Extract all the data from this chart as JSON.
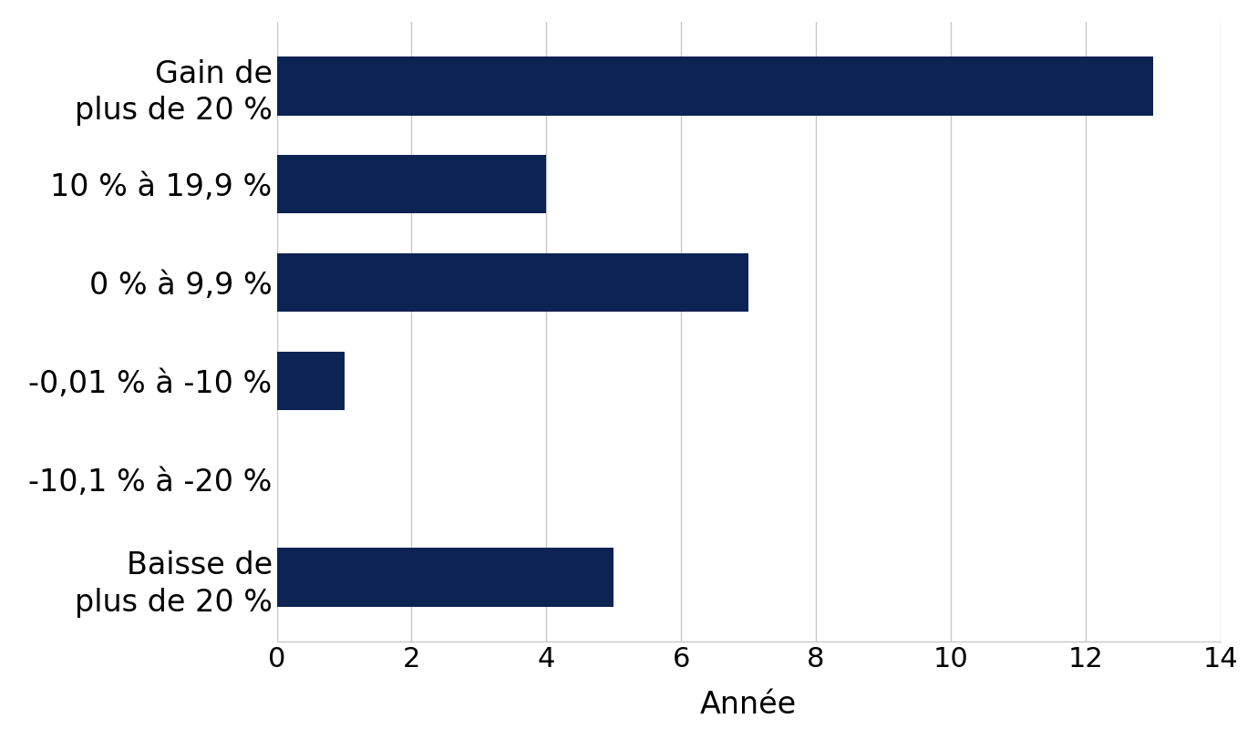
{
  "categories": [
    "Baisse de\nplus de 20 %",
    "-10,1 % à -20 %",
    "-0,01 % à -10 %",
    "0 % à 9,9 %",
    "10 % à 19,9 %",
    "Gain de\nplus de 20 %"
  ],
  "values": [
    5,
    0,
    1,
    7,
    4,
    13
  ],
  "bar_color": "#0d2354",
  "xlabel": "Année",
  "xlim": [
    0,
    14
  ],
  "xticks": [
    0,
    2,
    4,
    6,
    8,
    10,
    12,
    14
  ],
  "background_color": "#ffffff",
  "grid_color": "#c8c8c8",
  "label_fontsize": 24,
  "tick_fontsize": 22,
  "xlabel_fontsize": 24,
  "bar_height": 0.6
}
